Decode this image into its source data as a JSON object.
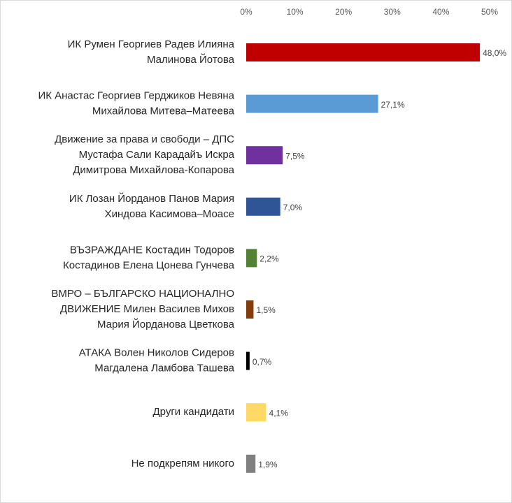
{
  "chart_data": {
    "type": "bar",
    "orientation": "horizontal",
    "categories": [
      [
        "ИК Румен Георгиев Радев Илияна",
        "Малинова Йотова"
      ],
      [
        "ИК Анастас Георгиев Герджиков Невяна",
        "Михайлова Митева–Матеева"
      ],
      [
        "Движение за права и свободи – ДПС",
        "Мустафа Сали Карадайъ Искра",
        "Димитрова Михайлова-Копарова"
      ],
      [
        "ИК Лозан Йорданов Панов Мария",
        "Хиндова Касимова–Моасе"
      ],
      [
        "ВЪЗРАЖДАНЕ Костадин Тодоров",
        "Костадинов Елена Цонева Гунчева"
      ],
      [
        "ВМРО – БЪЛГАРСКО НАЦИОНАЛНО",
        "ДВИЖЕНИЕ Милен Василев Михов",
        "Мария Йорданова Цветкова"
      ],
      [
        "АТАКА Волен Николов Сидеров",
        "Магдалена Ламбова Ташева"
      ],
      [
        "Други кандидати"
      ],
      [
        "Не подкрепям никого"
      ]
    ],
    "values": [
      48.0,
      27.1,
      7.5,
      7.0,
      2.2,
      1.5,
      0.7,
      4.1,
      1.9
    ],
    "value_labels": [
      "48,0%",
      "27,1%",
      "7,5%",
      "7,0%",
      "2,2%",
      "1,5%",
      "0,7%",
      "4,1%",
      "1,9%"
    ],
    "colors": [
      "#c00000",
      "#5b9bd5",
      "#7030a0",
      "#2f5597",
      "#548235",
      "#843c0c",
      "#000000",
      "#ffd966",
      "#808080"
    ],
    "xlim": [
      0,
      50
    ],
    "xticks": [
      {
        "value": 0,
        "label": "0%"
      },
      {
        "value": 10,
        "label": "10%"
      },
      {
        "value": 20,
        "label": "20%"
      },
      {
        "value": 30,
        "label": "30%"
      },
      {
        "value": 40,
        "label": "40%"
      },
      {
        "value": 50,
        "label": "50%"
      }
    ],
    "grid": false
  }
}
